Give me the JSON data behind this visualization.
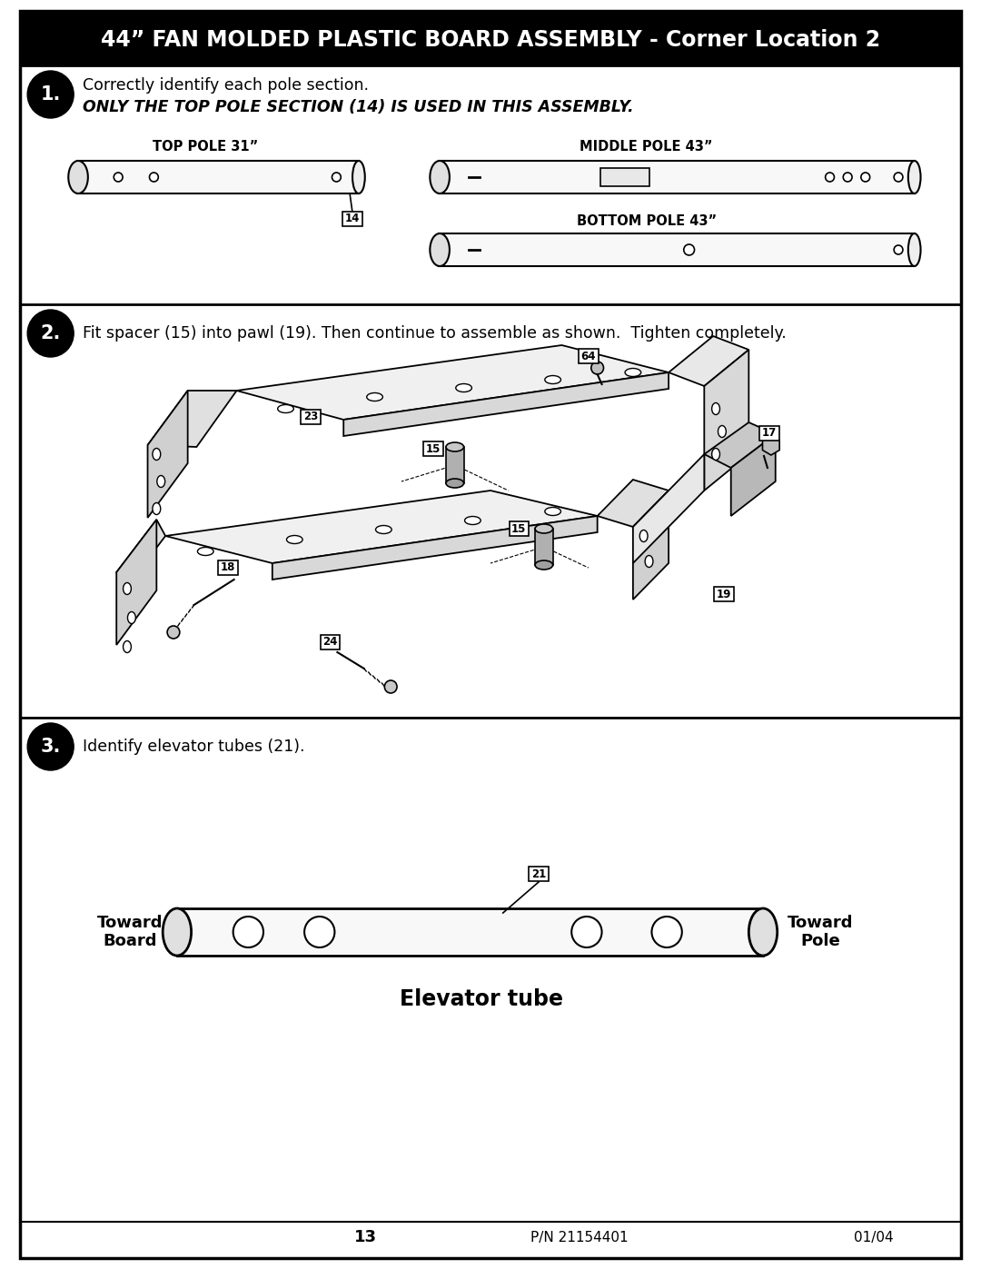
{
  "title": "44” FAN MOLDED PLASTIC BOARD ASSEMBLY - Corner Location 2",
  "title_bg": "#000000",
  "title_color": "#ffffff",
  "page_bg": "#ffffff",
  "step1_text1": "Correctly identify each pole section.",
  "step1_text2": "ONLY THE TOP POLE SECTION (14) IS USED IN THIS ASSEMBLY.",
  "step2_text": "Fit spacer (15) into pawl (19). Then continue to assemble as shown.  Tighten completely.",
  "step3_text": "Identify elevator tubes (21).",
  "top_pole_label": "TOP POLE 31”",
  "middle_pole_label": "MIDDLE POLE 43”",
  "bottom_pole_label": "BOTTOM POLE 43”",
  "elevator_tube_label": "Elevator tube",
  "toward_board": "Toward\nBoard",
  "toward_pole": "Toward\nPole",
  "footer_page": "13",
  "footer_pn": "P/N 21154401",
  "footer_date": "01/04"
}
